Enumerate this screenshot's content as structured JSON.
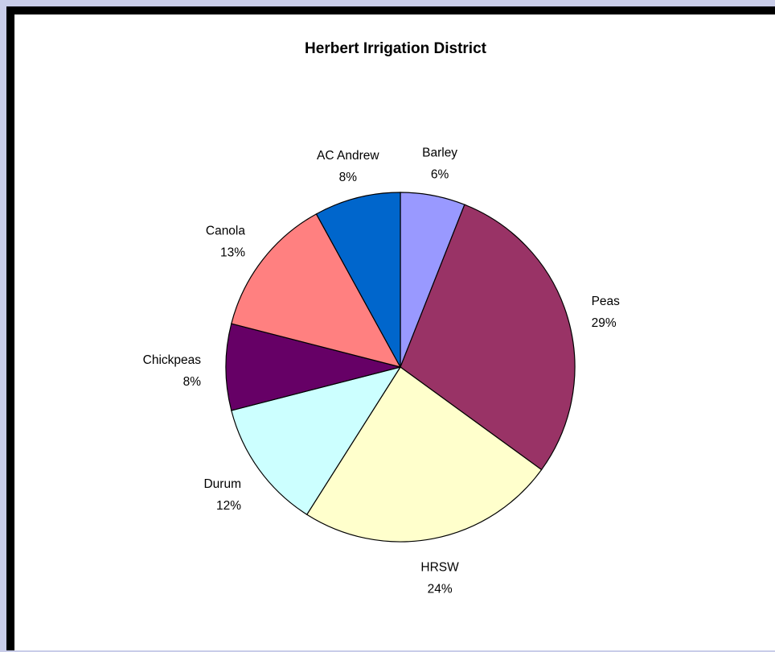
{
  "chart_data": {
    "type": "pie",
    "title": "Herbert Irrigation District",
    "slices": [
      {
        "label": "Barley",
        "value": 6,
        "display": "6%",
        "color": "#9999ff"
      },
      {
        "label": "Peas",
        "value": 29,
        "display": "29%",
        "color": "#993366"
      },
      {
        "label": "HRSW",
        "value": 24,
        "display": "24%",
        "color": "#ffffcc"
      },
      {
        "label": "Durum",
        "value": 12,
        "display": "12%",
        "color": "#ccffff"
      },
      {
        "label": "Chickpeas",
        "value": 8,
        "display": "8%",
        "color": "#660066"
      },
      {
        "label": "Canola",
        "value": 13,
        "display": "13%",
        "color": "#ff8080"
      },
      {
        "label": "AC Andrew",
        "value": 8,
        "display": "8%",
        "color": "#0066cc"
      }
    ],
    "start_angle_deg": 0,
    "direction": "clockwise",
    "legend": "none",
    "data_labels": "outside"
  },
  "colors": {
    "page_background": "#c9cde9",
    "frame_border": "#000000",
    "chart_background": "#ffffff"
  }
}
